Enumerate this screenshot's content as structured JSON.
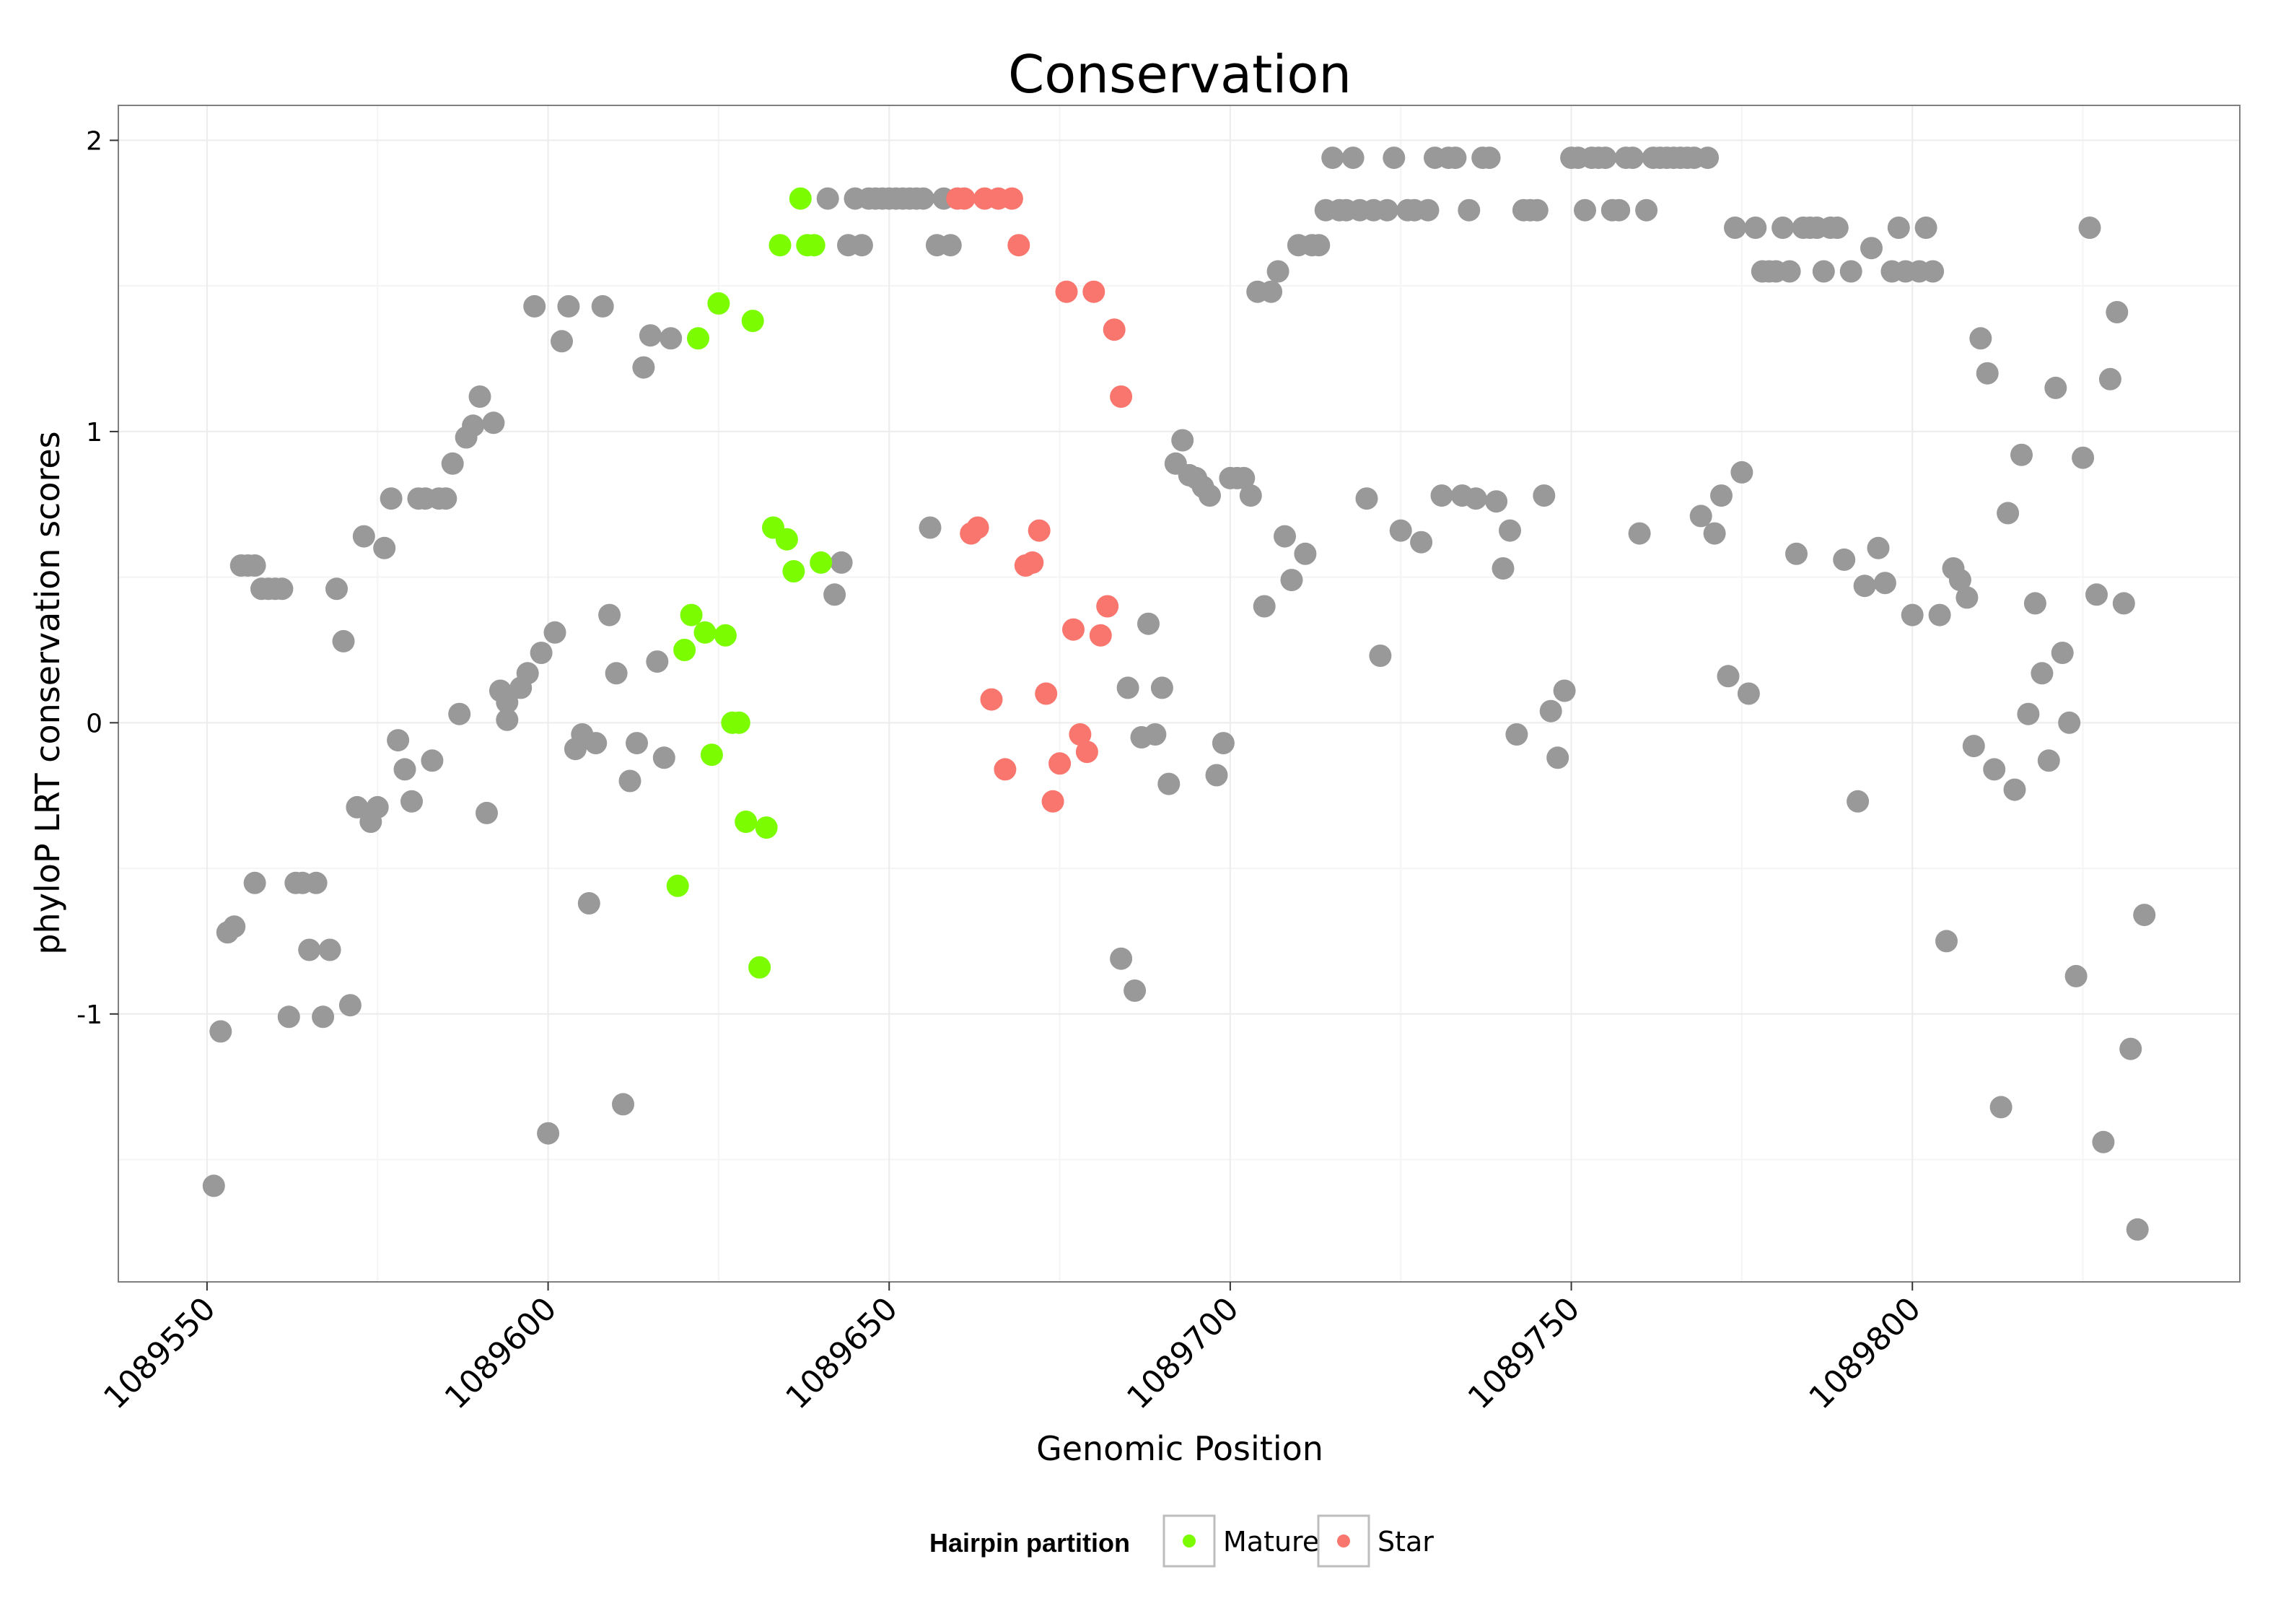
{
  "colors": {
    "Other": "#999999",
    "Mature": "#7CFC00",
    "Star": "#F8766D",
    "grid": "#ececec",
    "panel_border": "#7f7f7f"
  },
  "chart_data": {
    "type": "scatter",
    "title": "Conservation",
    "xlabel": "Genomic Position",
    "ylabel": "phyloP LRT conservation scores",
    "xlim": [
      1089537,
      1089848
    ],
    "ylim": [
      -1.92,
      2.12
    ],
    "x_ticks": [
      1089550,
      1089600,
      1089650,
      1089700,
      1089750,
      1089800
    ],
    "x_tick_labels": [
      "1089550",
      "1089600",
      "1089650",
      "1089700",
      "1089750",
      "1089800"
    ],
    "y_ticks": [
      -1,
      0,
      1,
      2
    ],
    "y_tick_labels": [
      "-1",
      "0",
      "1",
      "2"
    ],
    "legend": {
      "title": "Hairpin partition",
      "position": "bottom",
      "entries": [
        {
          "label": "Mature",
          "series": "Mature"
        },
        {
          "label": "Star",
          "series": "Star"
        }
      ]
    },
    "series": [
      {
        "name": "Other",
        "points": [
          [
            1089551,
            -1.59
          ],
          [
            1089552,
            -1.06
          ],
          [
            1089553,
            -0.72
          ],
          [
            1089554,
            -0.7
          ],
          [
            1089555,
            0.54
          ],
          [
            1089556,
            0.54
          ],
          [
            1089557,
            0.54
          ],
          [
            1089557,
            -0.55
          ],
          [
            1089558,
            0.46
          ],
          [
            1089559,
            0.46
          ],
          [
            1089560,
            0.46
          ],
          [
            1089561,
            0.46
          ],
          [
            1089562,
            -1.01
          ],
          [
            1089563,
            -0.55
          ],
          [
            1089564,
            -0.55
          ],
          [
            1089565,
            -0.78
          ],
          [
            1089566,
            -0.55
          ],
          [
            1089567,
            -1.01
          ],
          [
            1089568,
            -0.78
          ],
          [
            1089569,
            0.46
          ],
          [
            1089570,
            0.28
          ],
          [
            1089571,
            -0.97
          ],
          [
            1089572,
            -0.29
          ],
          [
            1089573,
            0.64
          ],
          [
            1089574,
            -0.34
          ],
          [
            1089575,
            -0.29
          ],
          [
            1089576,
            0.6
          ],
          [
            1089577,
            0.77
          ],
          [
            1089578,
            -0.06
          ],
          [
            1089579,
            -0.16
          ],
          [
            1089580,
            -0.27
          ],
          [
            1089581,
            0.77
          ],
          [
            1089582,
            0.77
          ],
          [
            1089583,
            -0.13
          ],
          [
            1089584,
            0.77
          ],
          [
            1089585,
            0.77
          ],
          [
            1089586,
            0.89
          ],
          [
            1089587,
            0.03
          ],
          [
            1089588,
            0.98
          ],
          [
            1089589,
            1.02
          ],
          [
            1089590,
            1.12
          ],
          [
            1089591,
            -0.31
          ],
          [
            1089592,
            1.03
          ],
          [
            1089593,
            0.11
          ],
          [
            1089594,
            0.07
          ],
          [
            1089594,
            0.01
          ],
          [
            1089596,
            0.12
          ],
          [
            1089597,
            0.17
          ],
          [
            1089598,
            1.43
          ],
          [
            1089599,
            0.24
          ],
          [
            1089600,
            -1.41
          ],
          [
            1089601,
            0.31
          ],
          [
            1089602,
            1.31
          ],
          [
            1089603,
            1.43
          ],
          [
            1089604,
            -0.09
          ],
          [
            1089605,
            -0.04
          ],
          [
            1089606,
            -0.62
          ],
          [
            1089607,
            -0.07
          ],
          [
            1089608,
            1.43
          ],
          [
            1089609,
            0.37
          ],
          [
            1089610,
            0.17
          ],
          [
            1089611,
            -1.31
          ],
          [
            1089612,
            -0.2
          ],
          [
            1089613,
            -0.07
          ],
          [
            1089614,
            1.22
          ],
          [
            1089615,
            1.33
          ],
          [
            1089616,
            0.21
          ],
          [
            1089617,
            -0.12
          ],
          [
            1089618,
            1.32
          ],
          [
            1089641,
            1.8
          ],
          [
            1089642,
            0.44
          ],
          [
            1089643,
            0.55
          ],
          [
            1089644,
            1.64
          ],
          [
            1089645,
            1.8
          ],
          [
            1089646,
            1.64
          ],
          [
            1089647,
            1.8
          ],
          [
            1089648,
            1.8
          ],
          [
            1089649,
            1.8
          ],
          [
            1089650,
            1.8
          ],
          [
            1089651,
            1.8
          ],
          [
            1089652,
            1.8
          ],
          [
            1089653,
            1.8
          ],
          [
            1089654,
            1.8
          ],
          [
            1089655,
            1.8
          ],
          [
            1089656,
            0.67
          ],
          [
            1089657,
            1.64
          ],
          [
            1089658,
            1.8
          ],
          [
            1089659,
            1.64
          ],
          [
            1089684,
            -0.81
          ],
          [
            1089685,
            0.12
          ],
          [
            1089686,
            -0.92
          ],
          [
            1089687,
            -0.05
          ],
          [
            1089688,
            0.34
          ],
          [
            1089689,
            -0.04
          ],
          [
            1089690,
            0.12
          ],
          [
            1089691,
            -0.21
          ],
          [
            1089692,
            0.89
          ],
          [
            1089693,
            0.97
          ],
          [
            1089694,
            0.85
          ],
          [
            1089695,
            0.84
          ],
          [
            1089696,
            0.81
          ],
          [
            1089697,
            0.78
          ],
          [
            1089698,
            -0.18
          ],
          [
            1089699,
            -0.07
          ],
          [
            1089700,
            0.84
          ],
          [
            1089701,
            0.84
          ],
          [
            1089702,
            0.84
          ],
          [
            1089703,
            0.78
          ],
          [
            1089704,
            1.48
          ],
          [
            1089705,
            0.4
          ],
          [
            1089706,
            1.48
          ],
          [
            1089707,
            1.55
          ],
          [
            1089708,
            0.64
          ],
          [
            1089709,
            0.49
          ],
          [
            1089710,
            1.64
          ],
          [
            1089711,
            0.58
          ],
          [
            1089712,
            1.64
          ],
          [
            1089713,
            1.64
          ],
          [
            1089714,
            1.76
          ],
          [
            1089715,
            1.94
          ],
          [
            1089716,
            1.76
          ],
          [
            1089717,
            1.76
          ],
          [
            1089718,
            1.94
          ],
          [
            1089719,
            1.76
          ],
          [
            1089720,
            0.77
          ],
          [
            1089721,
            1.76
          ],
          [
            1089722,
            0.23
          ],
          [
            1089723,
            1.76
          ],
          [
            1089724,
            1.94
          ],
          [
            1089725,
            0.66
          ],
          [
            1089726,
            1.76
          ],
          [
            1089727,
            1.76
          ],
          [
            1089728,
            0.62
          ],
          [
            1089729,
            1.76
          ],
          [
            1089730,
            1.94
          ],
          [
            1089731,
            0.78
          ],
          [
            1089732,
            1.94
          ],
          [
            1089733,
            1.94
          ],
          [
            1089734,
            0.78
          ],
          [
            1089735,
            1.76
          ],
          [
            1089736,
            0.77
          ],
          [
            1089737,
            1.94
          ],
          [
            1089738,
            1.94
          ],
          [
            1089739,
            0.76
          ],
          [
            1089740,
            0.53
          ],
          [
            1089741,
            0.66
          ],
          [
            1089742,
            -0.04
          ],
          [
            1089743,
            1.76
          ],
          [
            1089744,
            1.76
          ],
          [
            1089745,
            1.76
          ],
          [
            1089746,
            0.78
          ],
          [
            1089747,
            0.04
          ],
          [
            1089748,
            -0.12
          ],
          [
            1089749,
            0.11
          ],
          [
            1089750,
            1.94
          ],
          [
            1089751,
            1.94
          ],
          [
            1089752,
            1.76
          ],
          [
            1089753,
            1.94
          ],
          [
            1089754,
            1.94
          ],
          [
            1089755,
            1.94
          ],
          [
            1089756,
            1.76
          ],
          [
            1089757,
            1.76
          ],
          [
            1089758,
            1.94
          ],
          [
            1089759,
            1.94
          ],
          [
            1089760,
            0.65
          ],
          [
            1089761,
            1.76
          ],
          [
            1089762,
            1.94
          ],
          [
            1089763,
            1.94
          ],
          [
            1089764,
            1.94
          ],
          [
            1089765,
            1.94
          ],
          [
            1089766,
            1.94
          ],
          [
            1089767,
            1.94
          ],
          [
            1089768,
            1.94
          ],
          [
            1089769,
            0.71
          ],
          [
            1089770,
            1.94
          ],
          [
            1089771,
            0.65
          ],
          [
            1089772,
            0.78
          ],
          [
            1089773,
            0.16
          ],
          [
            1089774,
            1.7
          ],
          [
            1089775,
            0.86
          ],
          [
            1089776,
            0.1
          ],
          [
            1089777,
            1.7
          ],
          [
            1089778,
            1.55
          ],
          [
            1089779,
            1.55
          ],
          [
            1089780,
            1.55
          ],
          [
            1089781,
            1.7
          ],
          [
            1089782,
            1.55
          ],
          [
            1089783,
            0.58
          ],
          [
            1089784,
            1.7
          ],
          [
            1089785,
            1.7
          ],
          [
            1089786,
            1.7
          ],
          [
            1089787,
            1.55
          ],
          [
            1089788,
            1.7
          ],
          [
            1089789,
            1.7
          ],
          [
            1089790,
            0.56
          ],
          [
            1089791,
            1.55
          ],
          [
            1089792,
            -0.27
          ],
          [
            1089793,
            0.47
          ],
          [
            1089794,
            1.63
          ],
          [
            1089795,
            0.6
          ],
          [
            1089796,
            0.48
          ],
          [
            1089797,
            1.55
          ],
          [
            1089798,
            1.7
          ],
          [
            1089799,
            1.55
          ],
          [
            1089800,
            0.37
          ],
          [
            1089801,
            1.55
          ],
          [
            1089802,
            1.7
          ],
          [
            1089803,
            1.55
          ],
          [
            1089804,
            0.37
          ],
          [
            1089805,
            -0.75
          ],
          [
            1089806,
            0.53
          ],
          [
            1089807,
            0.49
          ],
          [
            1089808,
            0.43
          ],
          [
            1089809,
            -0.08
          ],
          [
            1089810,
            1.32
          ],
          [
            1089811,
            1.2
          ],
          [
            1089812,
            -0.16
          ],
          [
            1089813,
            -1.32
          ],
          [
            1089814,
            0.72
          ],
          [
            1089815,
            -0.23
          ],
          [
            1089816,
            0.92
          ],
          [
            1089817,
            0.03
          ],
          [
            1089818,
            0.41
          ],
          [
            1089819,
            0.17
          ],
          [
            1089820,
            -0.13
          ],
          [
            1089821,
            1.15
          ],
          [
            1089822,
            0.24
          ],
          [
            1089823,
            0.0
          ],
          [
            1089824,
            -0.87
          ],
          [
            1089825,
            0.91
          ],
          [
            1089826,
            1.7
          ],
          [
            1089827,
            0.44
          ],
          [
            1089828,
            -1.44
          ],
          [
            1089829,
            1.18
          ],
          [
            1089830,
            1.41
          ],
          [
            1089831,
            0.41
          ],
          [
            1089832,
            -1.12
          ],
          [
            1089833,
            -1.74
          ],
          [
            1089834,
            -0.66
          ]
        ]
      },
      {
        "name": "Mature",
        "points": [
          [
            1089619,
            -0.56
          ],
          [
            1089620,
            0.25
          ],
          [
            1089621,
            0.37
          ],
          [
            1089622,
            1.32
          ],
          [
            1089623,
            0.31
          ],
          [
            1089624,
            -0.11
          ],
          [
            1089625,
            1.44
          ],
          [
            1089626,
            0.3
          ],
          [
            1089627,
            0.0
          ],
          [
            1089628,
            0.0
          ],
          [
            1089629,
            -0.34
          ],
          [
            1089630,
            1.38
          ],
          [
            1089631,
            -0.84
          ],
          [
            1089632,
            -0.36
          ],
          [
            1089633,
            0.67
          ],
          [
            1089634,
            1.64
          ],
          [
            1089635,
            0.63
          ],
          [
            1089636,
            0.52
          ],
          [
            1089637,
            1.8
          ],
          [
            1089638,
            1.64
          ],
          [
            1089639,
            1.64
          ],
          [
            1089640,
            0.55
          ]
        ]
      },
      {
        "name": "Star",
        "points": [
          [
            1089660,
            1.8
          ],
          [
            1089661,
            1.8
          ],
          [
            1089662,
            0.65
          ],
          [
            1089663,
            0.67
          ],
          [
            1089664,
            1.8
          ],
          [
            1089665,
            0.08
          ],
          [
            1089666,
            1.8
          ],
          [
            1089667,
            -0.16
          ],
          [
            1089668,
            1.8
          ],
          [
            1089669,
            1.64
          ],
          [
            1089670,
            0.54
          ],
          [
            1089671,
            0.55
          ],
          [
            1089672,
            0.66
          ],
          [
            1089673,
            0.1
          ],
          [
            1089674,
            -0.27
          ],
          [
            1089675,
            -0.14
          ],
          [
            1089676,
            1.48
          ],
          [
            1089677,
            0.32
          ],
          [
            1089678,
            -0.04
          ],
          [
            1089679,
            -0.1
          ],
          [
            1089680,
            1.48
          ],
          [
            1089681,
            0.3
          ],
          [
            1089682,
            0.4
          ],
          [
            1089683,
            1.35
          ],
          [
            1089684,
            1.12
          ]
        ]
      }
    ]
  }
}
